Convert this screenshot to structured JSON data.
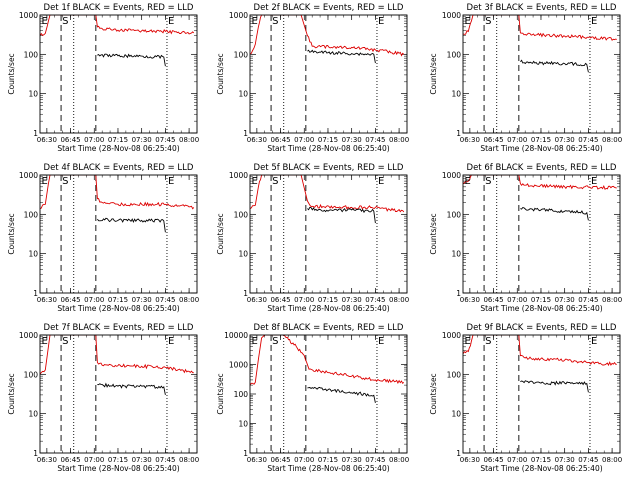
{
  "figure": {
    "time_ticks": [
      "06:30",
      "06:45",
      "07:00",
      "07:15",
      "07:30",
      "07:45",
      "08:00"
    ],
    "xlabel": "Start Time (28-Nov-08 06:25:40)",
    "ylabel": "Counts/sec",
    "ytick_labels": [
      "1",
      "10",
      "100",
      "1000",
      "10000"
    ],
    "marker_S": "S",
    "marker_E": "E",
    "colors": {
      "events": "#000000",
      "lld": "#dd0000",
      "axes": "#000000",
      "background": "#ffffff"
    }
  },
  "chart_data": [
    {
      "type": "line",
      "title": "Det 1f BLACK = Events, RED = LLD",
      "xlabel": "Start Time (28-Nov-08 06:25:40)",
      "ylabel": "Counts/sec",
      "ylog": true,
      "ylim": [
        1,
        1000
      ],
      "yticks": [
        1,
        10,
        100,
        1000
      ],
      "xlim": [
        "06:25:40",
        "08:05"
      ],
      "vlines_dashed": [
        "06:39",
        "07:01"
      ],
      "vlines_dotted": [
        "06:47",
        "07:46"
      ],
      "markers": [
        {
          "label": "E",
          "at": "06:26"
        },
        {
          "label": "S",
          "at": "06:39"
        },
        {
          "label": "E",
          "at": "07:46"
        }
      ],
      "series": [
        {
          "color": "#dd0000",
          "points": [
            [
              "06:25:40",
              300
            ],
            [
              "06:29",
              340
            ],
            [
              "06:31",
              700
            ],
            [
              "06:32",
              1000
            ],
            [
              "07:01",
              1000
            ],
            [
              "07:02",
              500
            ],
            [
              "07:05",
              450
            ],
            [
              "07:15",
              410
            ],
            [
              "07:30",
              400
            ],
            [
              "07:45",
              380
            ],
            [
              "08:03",
              350
            ]
          ]
        },
        {
          "color": "#000000",
          "points": [
            [
              "07:02",
              95
            ],
            [
              "07:15",
              92
            ],
            [
              "07:30",
              90
            ],
            [
              "07:44",
              85
            ],
            [
              "07:45",
              50
            ]
          ]
        }
      ]
    },
    {
      "type": "line",
      "title": "Det 2f BLACK = Events, RED = LLD",
      "xlabel": "Start Time (28-Nov-08 06:25:40)",
      "ylabel": "Counts/sec",
      "ylog": true,
      "ylim": [
        1,
        1000
      ],
      "yticks": [
        1,
        10,
        100,
        1000
      ],
      "xlim": [
        "06:25:40",
        "08:05"
      ],
      "vlines_dashed": [
        "06:39",
        "07:01"
      ],
      "vlines_dotted": [
        "06:47",
        "07:46"
      ],
      "markers": [
        {
          "label": "E",
          "at": "06:26"
        },
        {
          "label": "S",
          "at": "06:39"
        },
        {
          "label": "E",
          "at": "07:46"
        }
      ],
      "series": [
        {
          "color": "#dd0000",
          "points": [
            [
              "06:25:40",
              100
            ],
            [
              "06:29",
              180
            ],
            [
              "06:31",
              500
            ],
            [
              "06:33",
              1000
            ],
            [
              "06:58",
              1000
            ],
            [
              "07:02",
              300
            ],
            [
              "07:05",
              160
            ],
            [
              "07:30",
              150
            ],
            [
              "07:45",
              130
            ],
            [
              "08:03",
              100
            ]
          ]
        },
        {
          "color": "#000000",
          "points": [
            [
              "07:02",
              120
            ],
            [
              "07:15",
              110
            ],
            [
              "07:30",
              105
            ],
            [
              "07:44",
              100
            ],
            [
              "07:45",
              60
            ]
          ]
        }
      ]
    },
    {
      "type": "line",
      "title": "Det 3f BLACK = Events, RED = LLD",
      "xlabel": "Start Time (28-Nov-08 06:25:40)",
      "ylabel": "Counts/sec",
      "ylog": true,
      "ylim": [
        1,
        1000
      ],
      "yticks": [
        1,
        10,
        100,
        1000
      ],
      "xlim": [
        "06:25:40",
        "08:05"
      ],
      "vlines_dashed": [
        "06:39",
        "07:01"
      ],
      "vlines_dotted": [
        "06:47",
        "07:46"
      ],
      "markers": [
        {
          "label": "E",
          "at": "06:26"
        },
        {
          "label": "S",
          "at": "06:39"
        },
        {
          "label": "E",
          "at": "07:46"
        }
      ],
      "series": [
        {
          "color": "#dd0000",
          "points": [
            [
              "06:25:40",
              330
            ],
            [
              "06:29",
              380
            ],
            [
              "06:31",
              700
            ],
            [
              "06:32",
              1000
            ],
            [
              "07:01",
              1000
            ],
            [
              "07:02",
              350
            ],
            [
              "07:05",
              320
            ],
            [
              "07:30",
              290
            ],
            [
              "07:45",
              270
            ],
            [
              "08:03",
              240
            ]
          ]
        },
        {
          "color": "#000000",
          "points": [
            [
              "07:02",
              65
            ],
            [
              "07:15",
              60
            ],
            [
              "07:30",
              58
            ],
            [
              "07:44",
              55
            ],
            [
              "07:45",
              35
            ]
          ]
        }
      ]
    },
    {
      "type": "line",
      "title": "Det 4f BLACK = Events, RED = LLD",
      "xlabel": "Start Time (28-Nov-08 06:25:40)",
      "ylabel": "Counts/sec",
      "ylog": true,
      "ylim": [
        1,
        1000
      ],
      "yticks": [
        1,
        10,
        100,
        1000
      ],
      "xlim": [
        "06:25:40",
        "08:05"
      ],
      "vlines_dashed": [
        "06:39",
        "07:01"
      ],
      "vlines_dotted": [
        "06:47",
        "07:46"
      ],
      "markers": [
        {
          "label": "E",
          "at": "06:26"
        },
        {
          "label": "S",
          "at": "06:39"
        },
        {
          "label": "E",
          "at": "07:46"
        }
      ],
      "series": [
        {
          "color": "#dd0000",
          "points": [
            [
              "06:25:40",
              140
            ],
            [
              "06:29",
              180
            ],
            [
              "06:31",
              600
            ],
            [
              "06:32",
              1000
            ],
            [
              "07:01",
              1000
            ],
            [
              "07:02",
              250
            ],
            [
              "07:05",
              200
            ],
            [
              "07:15",
              180
            ],
            [
              "07:30",
              180
            ],
            [
              "07:45",
              180
            ],
            [
              "08:03",
              150
            ]
          ]
        },
        {
          "color": "#000000",
          "points": [
            [
              "07:02",
              75
            ],
            [
              "07:15",
              70
            ],
            [
              "07:30",
              70
            ],
            [
              "07:44",
              68
            ],
            [
              "07:45",
              35
            ]
          ]
        }
      ]
    },
    {
      "type": "line",
      "title": "Det 5f BLACK = Events, RED = LLD",
      "xlabel": "Start Time (28-Nov-08 06:25:40)",
      "ylabel": "Counts/sec",
      "ylog": true,
      "ylim": [
        1,
        1000
      ],
      "yticks": [
        1,
        10,
        100,
        1000
      ],
      "xlim": [
        "06:25:40",
        "08:05"
      ],
      "vlines_dashed": [
        "06:39",
        "07:01"
      ],
      "vlines_dotted": [
        "06:47",
        "07:46"
      ],
      "markers": [
        {
          "label": "E",
          "at": "06:26"
        },
        {
          "label": "S",
          "at": "06:39"
        },
        {
          "label": "E",
          "at": "07:46"
        }
      ],
      "series": [
        {
          "color": "#dd0000",
          "points": [
            [
              "06:25:40",
              140
            ],
            [
              "06:29",
              170
            ],
            [
              "06:31",
              500
            ],
            [
              "06:33",
              1000
            ],
            [
              "06:58",
              1000
            ],
            [
              "07:02",
              220
            ],
            [
              "07:05",
              160
            ],
            [
              "07:30",
              150
            ],
            [
              "07:45",
              150
            ],
            [
              "08:03",
              115
            ]
          ]
        },
        {
          "color": "#000000",
          "points": [
            [
              "07:02",
              140
            ],
            [
              "07:15",
              120
            ],
            [
              "07:30",
              130
            ],
            [
              "07:44",
              120
            ],
            [
              "07:45",
              60
            ]
          ]
        }
      ]
    },
    {
      "type": "line",
      "title": "Det 6f BLACK = Events, RED = LLD",
      "xlabel": "Start Time (28-Nov-08 06:25:40)",
      "ylabel": "Counts/sec",
      "ylog": true,
      "ylim": [
        1,
        1000
      ],
      "yticks": [
        1,
        10,
        100,
        1000
      ],
      "xlim": [
        "06:25:40",
        "08:05"
      ],
      "vlines_dashed": [
        "06:39",
        "07:01"
      ],
      "vlines_dotted": [
        "06:47",
        "07:46"
      ],
      "markers": [
        {
          "label": "E",
          "at": "06:26"
        },
        {
          "label": "S",
          "at": "06:39"
        },
        {
          "label": "E",
          "at": "07:46"
        }
      ],
      "series": [
        {
          "color": "#dd0000",
          "points": [
            [
              "06:25:40",
              600
            ],
            [
              "06:29",
              700
            ],
            [
              "06:31",
              1000
            ],
            [
              "07:01",
              1000
            ],
            [
              "07:02",
              600
            ],
            [
              "07:05",
              550
            ],
            [
              "07:30",
              500
            ],
            [
              "07:45",
              490
            ],
            [
              "08:03",
              470
            ]
          ]
        },
        {
          "color": "#000000",
          "points": [
            [
              "07:02",
              140
            ],
            [
              "07:15",
              130
            ],
            [
              "07:30",
              120
            ],
            [
              "07:44",
              110
            ],
            [
              "07:45",
              70
            ]
          ]
        }
      ]
    },
    {
      "type": "line",
      "title": "Det 7f BLACK = Events, RED = LLD",
      "xlabel": "Start Time (28-Nov-08 06:25:40)",
      "ylabel": "Counts/sec",
      "ylog": true,
      "ylim": [
        1,
        1000
      ],
      "yticks": [
        1,
        10,
        100,
        1000
      ],
      "xlim": [
        "06:25:40",
        "08:05"
      ],
      "vlines_dashed": [
        "06:39",
        "07:01"
      ],
      "vlines_dotted": [
        "06:47",
        "07:46"
      ],
      "markers": [
        {
          "label": "E",
          "at": "06:26"
        },
        {
          "label": "S",
          "at": "06:39"
        },
        {
          "label": "E",
          "at": "07:46"
        }
      ],
      "series": [
        {
          "color": "#dd0000",
          "points": [
            [
              "06:25:40",
              100
            ],
            [
              "06:29",
              130
            ],
            [
              "06:31",
              500
            ],
            [
              "06:32",
              1000
            ],
            [
              "07:01",
              1000
            ],
            [
              "07:02",
              200
            ],
            [
              "07:05",
              170
            ],
            [
              "07:30",
              160
            ],
            [
              "07:45",
              150
            ],
            [
              "08:03",
              110
            ]
          ]
        },
        {
          "color": "#000000",
          "points": [
            [
              "07:02",
              55
            ],
            [
              "07:15",
              50
            ],
            [
              "07:30",
              50
            ],
            [
              "07:44",
              48
            ],
            [
              "07:45",
              30
            ]
          ]
        }
      ]
    },
    {
      "type": "line",
      "title": "Det 8f BLACK = Events, RED = LLD",
      "xlabel": "Start Time (28-Nov-08 06:25:40)",
      "ylabel": "Counts/sec",
      "ylog": true,
      "ylim": [
        1,
        10000
      ],
      "yticks": [
        1,
        10,
        100,
        1000,
        10000
      ],
      "xlim": [
        "06:25:40",
        "08:05"
      ],
      "vlines_dashed": [
        "06:39",
        "07:01"
      ],
      "vlines_dotted": [
        "06:47",
        "07:46"
      ],
      "markers": [
        {
          "label": "E",
          "at": "06:26"
        },
        {
          "label": "S",
          "at": "06:39"
        },
        {
          "label": "E",
          "at": "07:46"
        }
      ],
      "series": [
        {
          "color": "#dd0000",
          "points": [
            [
              "06:25:40",
              200
            ],
            [
              "06:29",
              250
            ],
            [
              "06:31",
              1500
            ],
            [
              "06:33",
              8000
            ],
            [
              "06:35",
              10000
            ],
            [
              "06:47",
              10000
            ],
            [
              "06:50",
              7000
            ],
            [
              "06:55",
              4000
            ],
            [
              "07:00",
              2000
            ],
            [
              "07:03",
              700
            ],
            [
              "07:10",
              600
            ],
            [
              "07:30",
              400
            ],
            [
              "07:45",
              300
            ],
            [
              "08:03",
              250
            ]
          ]
        },
        {
          "color": "#000000",
          "points": [
            [
              "07:02",
              160
            ],
            [
              "07:15",
              140
            ],
            [
              "07:30",
              110
            ],
            [
              "07:44",
              90
            ],
            [
              "07:45",
              50
            ]
          ]
        }
      ]
    },
    {
      "type": "line",
      "title": "Det 9f BLACK = Events, RED = LLD",
      "xlabel": "Start Time (28-Nov-08 06:25:40)",
      "ylabel": "Counts/sec",
      "ylog": true,
      "ylim": [
        1,
        1000
      ],
      "yticks": [
        1,
        10,
        100,
        1000
      ],
      "xlim": [
        "06:25:40",
        "08:05"
      ],
      "vlines_dashed": [
        "06:39",
        "07:01"
      ],
      "vlines_dotted": [
        "06:47",
        "07:46"
      ],
      "markers": [
        {
          "label": "E",
          "at": "06:26"
        },
        {
          "label": "S",
          "at": "06:39"
        },
        {
          "label": "E",
          "at": "07:46"
        }
      ],
      "series": [
        {
          "color": "#dd0000",
          "points": [
            [
              "06:25:40",
              330
            ],
            [
              "06:29",
              380
            ],
            [
              "06:31",
              700
            ],
            [
              "06:32",
              1000
            ],
            [
              "07:01",
              1000
            ],
            [
              "07:02",
              300
            ],
            [
              "07:05",
              260
            ],
            [
              "07:30",
              230
            ],
            [
              "07:45",
              200
            ],
            [
              "08:03",
              180
            ]
          ]
        },
        {
          "color": "#000000",
          "points": [
            [
              "07:02",
              65
            ],
            [
              "07:15",
              60
            ],
            [
              "07:30",
              60
            ],
            [
              "07:44",
              58
            ],
            [
              "07:45",
              35
            ]
          ]
        }
      ]
    }
  ]
}
